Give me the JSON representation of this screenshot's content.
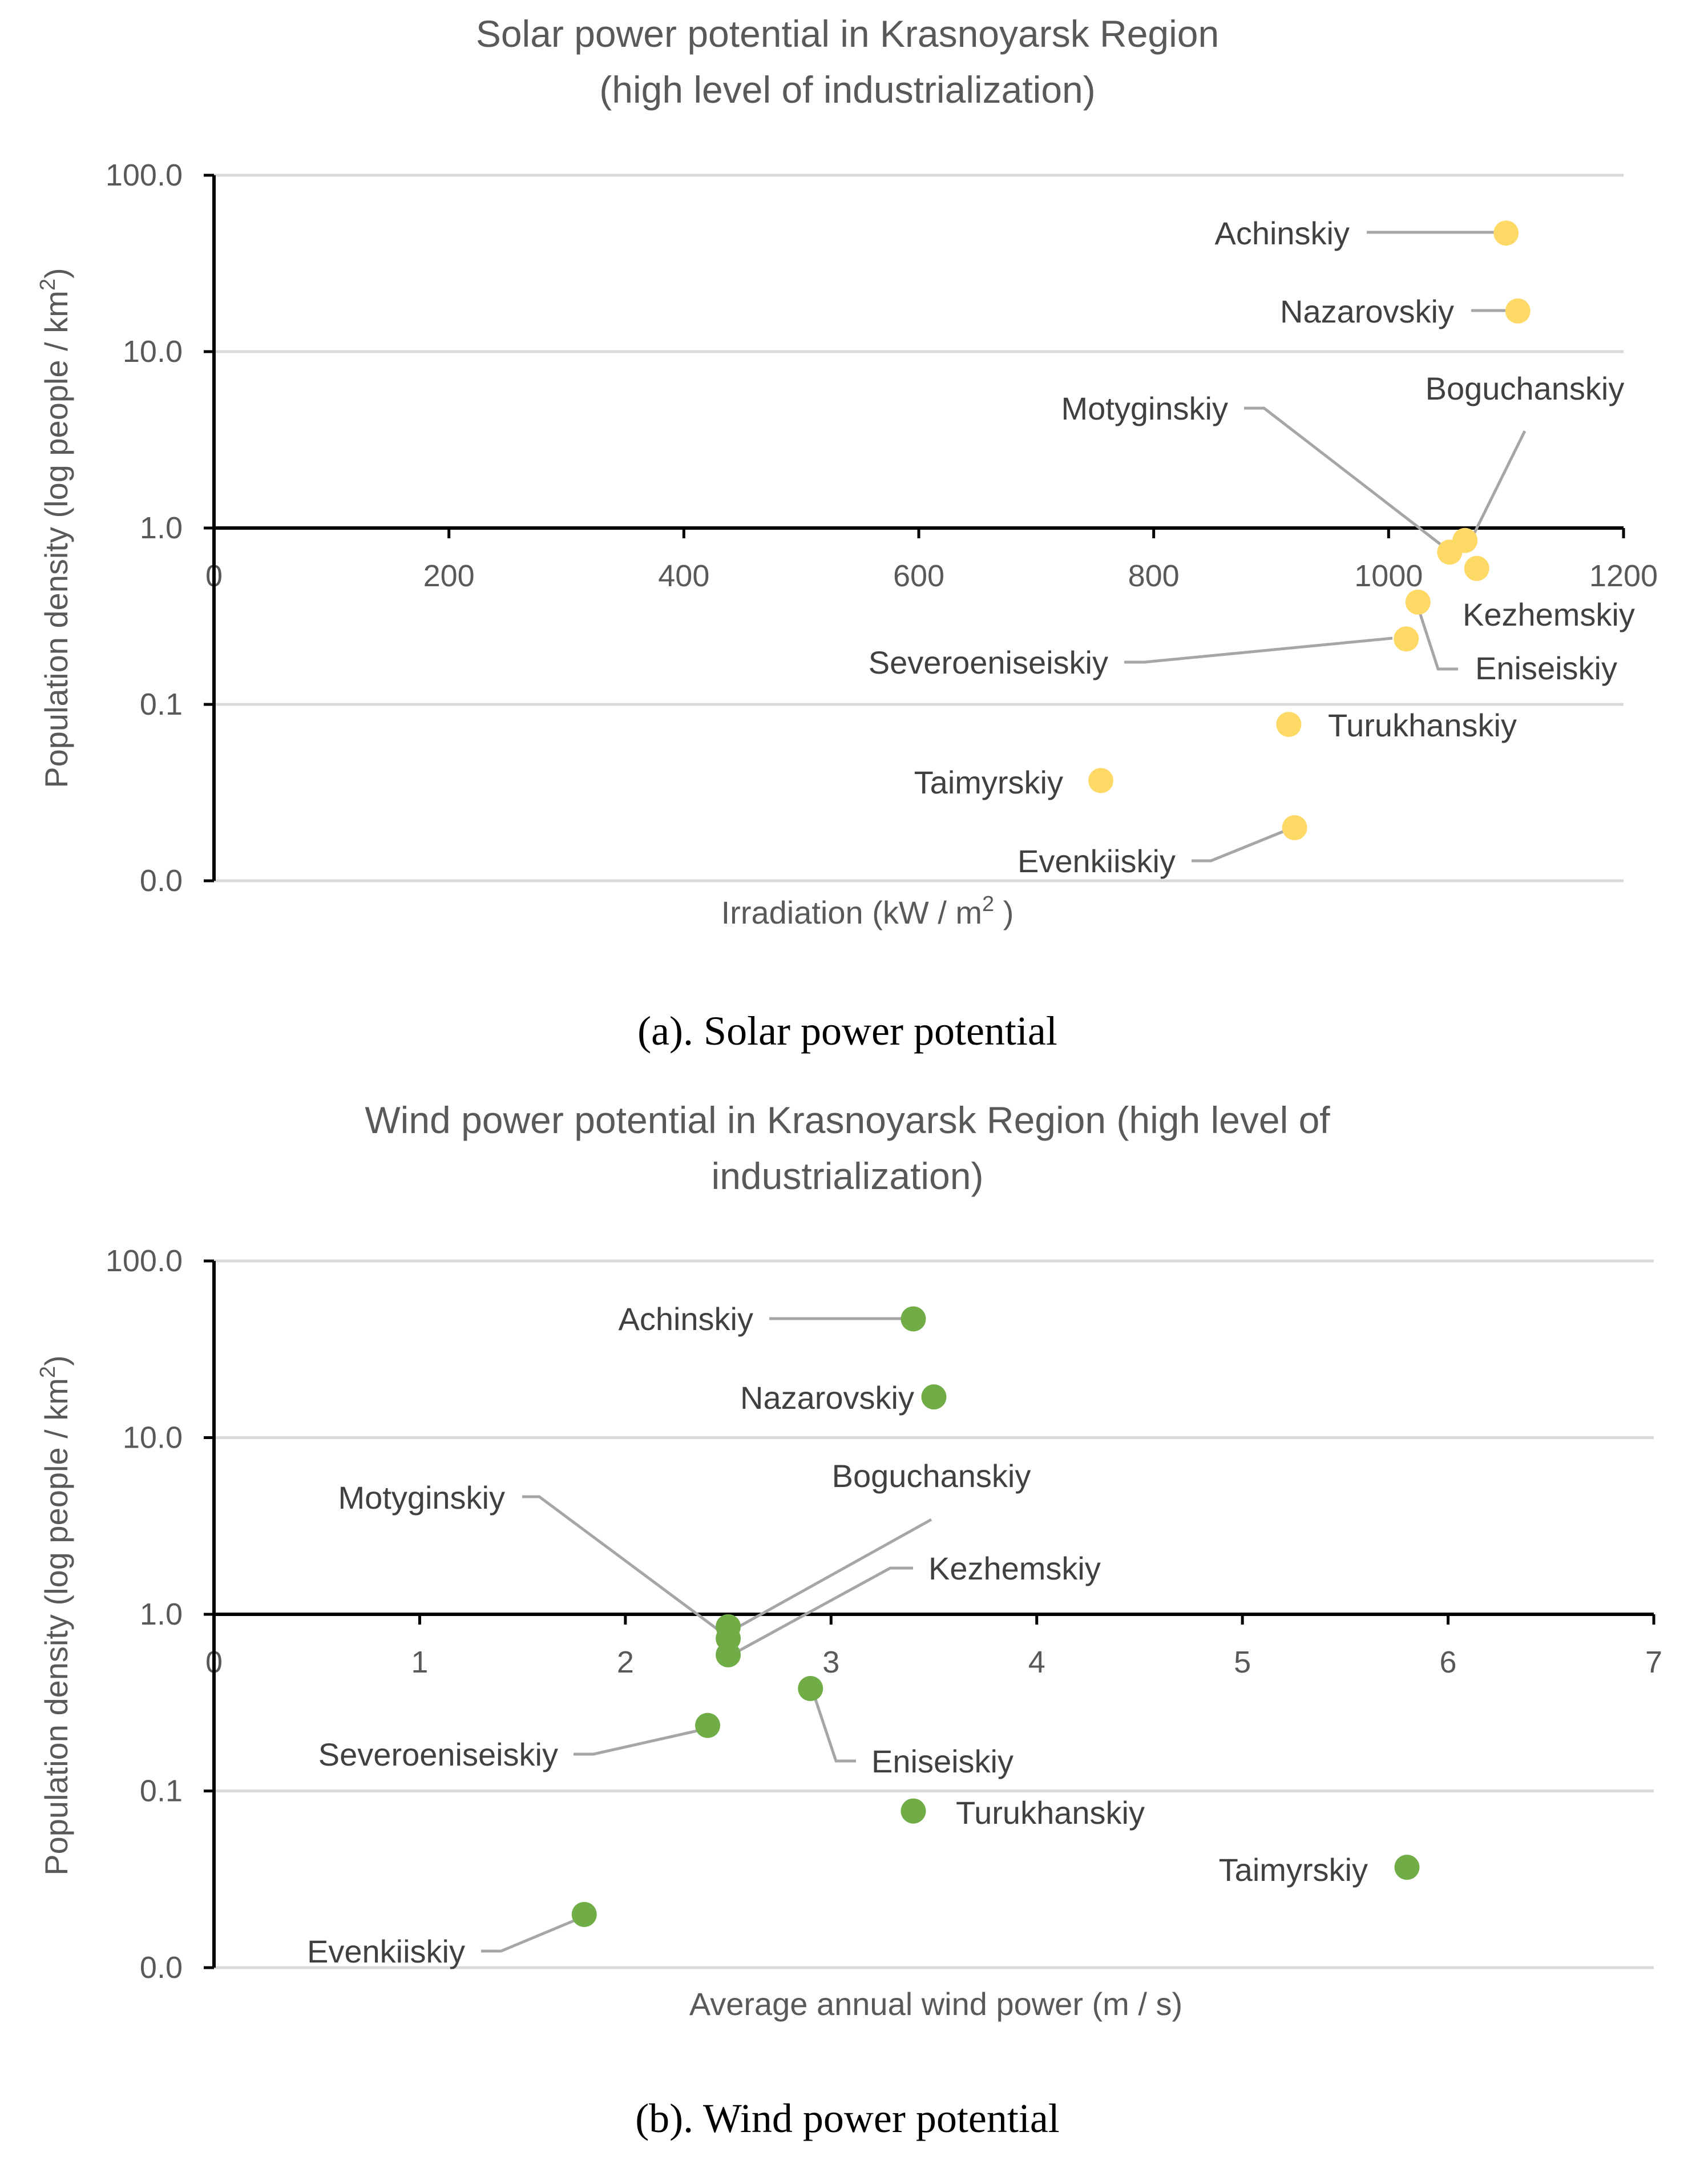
{
  "chart_data": [
    {
      "type": "scatter",
      "title_lines": [
        "Solar power potential in Krasnoyarsk Region",
        "(high level of industrialization)"
      ],
      "xlabel": "Irradiation (kW / m",
      "xlabel_sup": "2",
      "xlabel_end": " )",
      "ylabel": "Population density (log people / km",
      "ylabel_sup": "2",
      "ylabel_end": ")",
      "caption": "(a). Solar power potential",
      "xlim": [
        0,
        1200
      ],
      "ylim_log": [
        0.01,
        100
      ],
      "x_ticks": [
        "0",
        "200",
        "400",
        "600",
        "800",
        "1000",
        "1200"
      ],
      "y_ticks": [
        "100.0",
        "10.0",
        "1.0",
        "0.1",
        "0.0"
      ],
      "marker_color": "#ffd966",
      "points": [
        {
          "name": "Achinskiy",
          "x": 1100,
          "y": 47
        },
        {
          "name": "Nazarovskiy",
          "x": 1110,
          "y": 17
        },
        {
          "name": "Motyginskiy",
          "x": 1052,
          "y": 0.73
        },
        {
          "name": "Boguchanskiy",
          "x": 1065,
          "y": 0.85
        },
        {
          "name": "Kezhemskiy",
          "x": 1075,
          "y": 0.59
        },
        {
          "name": "Eniseiskiy",
          "x": 1025,
          "y": 0.38
        },
        {
          "name": "Severoeniseiskiy",
          "x": 1015,
          "y": 0.235
        },
        {
          "name": "Turukhanskiy",
          "x": 915,
          "y": 0.077
        },
        {
          "name": "Taimyrskiy",
          "x": 755,
          "y": 0.037
        },
        {
          "name": "Evenkiiskiy",
          "x": 920,
          "y": 0.02
        }
      ]
    },
    {
      "type": "scatter",
      "title_lines": [
        "Wind power potential in Krasnoyarsk Region (high level of",
        "industrialization)"
      ],
      "xlabel": "Average annual wind power (m / s)",
      "ylabel": "Population density (log people / km",
      "ylabel_sup": "2",
      "ylabel_end": ")",
      "caption": "(b). Wind power potential",
      "xlim": [
        0,
        7
      ],
      "ylim_log": [
        0.01,
        100
      ],
      "x_ticks": [
        "0",
        "1",
        "2",
        "3",
        "4",
        "5",
        "6",
        "7"
      ],
      "y_ticks": [
        "100.0",
        "10.0",
        "1.0",
        "0.1",
        "0.0"
      ],
      "marker_color": "#70ad47",
      "points": [
        {
          "name": "Achinskiy",
          "x": 3.4,
          "y": 47
        },
        {
          "name": "Nazarovskiy",
          "x": 3.5,
          "y": 17
        },
        {
          "name": "Motyginskiy",
          "x": 2.5,
          "y": 0.73
        },
        {
          "name": "Boguchanskiy",
          "x": 2.5,
          "y": 0.85
        },
        {
          "name": "Kezhemskiy",
          "x": 2.5,
          "y": 0.59
        },
        {
          "name": "Eniseiskiy",
          "x": 2.9,
          "y": 0.38
        },
        {
          "name": "Severoeniseiskiy",
          "x": 2.4,
          "y": 0.235
        },
        {
          "name": "Turukhanskiy",
          "x": 3.4,
          "y": 0.077
        },
        {
          "name": "Taimyrskiy",
          "x": 5.8,
          "y": 0.037
        },
        {
          "name": "Evenkiiskiy",
          "x": 1.8,
          "y": 0.02
        }
      ]
    }
  ]
}
